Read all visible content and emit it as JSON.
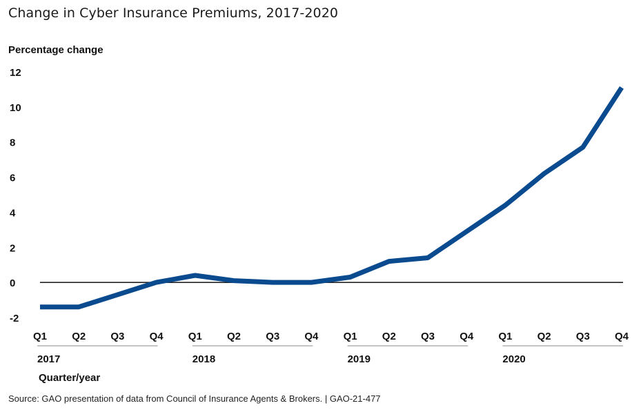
{
  "title": "Change in Cyber Insurance Premiums, 2017-2020",
  "source": "Source: GAO presentation of data from Council of Insurance Agents & Brokers.  |  GAO-21-477",
  "chart_data": {
    "type": "line",
    "title": "Change in Cyber Insurance Premiums, 2017-2020",
    "ylabel": "Percentage change",
    "xlabel": "Quarter/year",
    "ylim": [
      -2,
      12
    ],
    "yticks": [
      -2,
      0,
      2,
      4,
      6,
      8,
      10,
      12
    ],
    "categories": [
      "Q1",
      "Q2",
      "Q3",
      "Q4",
      "Q1",
      "Q2",
      "Q3",
      "Q4",
      "Q1",
      "Q2",
      "Q3",
      "Q4",
      "Q1",
      "Q2",
      "Q3",
      "Q4"
    ],
    "years": [
      "2017",
      "2018",
      "2019",
      "2020"
    ],
    "values": [
      -1.4,
      -1.4,
      -0.7,
      0.0,
      0.4,
      0.1,
      0.0,
      0.0,
      0.3,
      1.2,
      1.4,
      2.9,
      4.4,
      6.2,
      7.7,
      11.1
    ],
    "color": "#0a4a8f",
    "zero_line": true,
    "grid": false
  }
}
